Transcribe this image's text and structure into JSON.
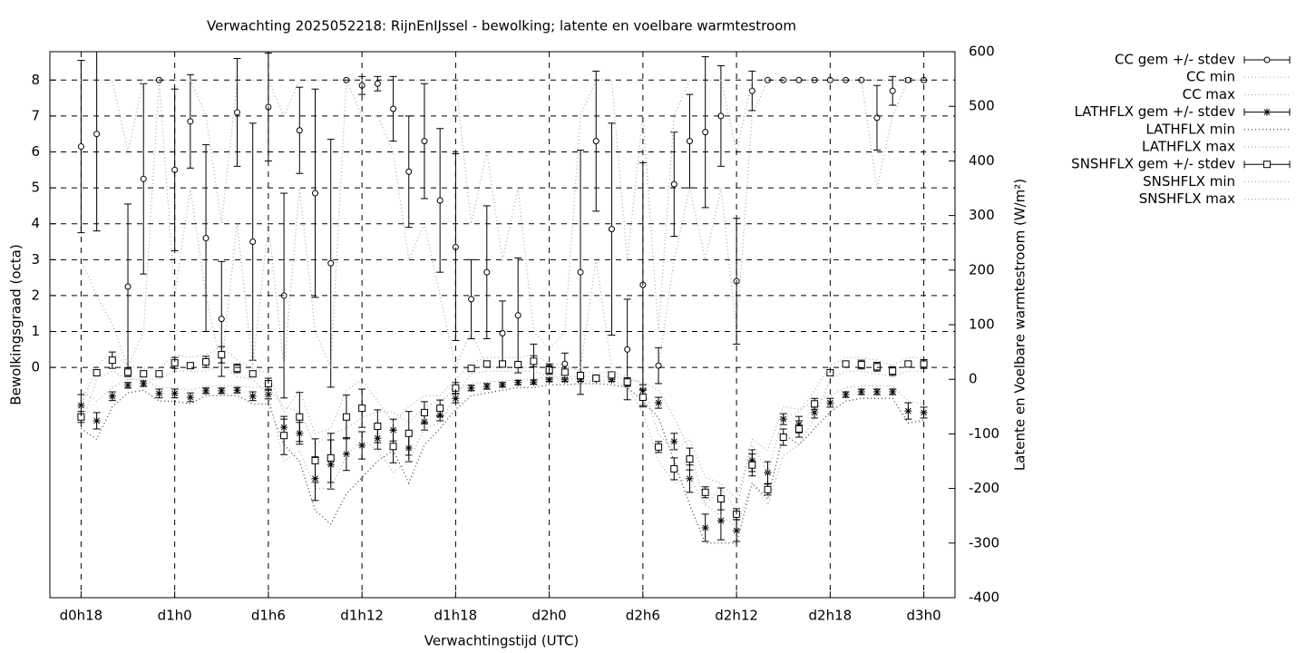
{
  "chart_data": {
    "type": "errorbar",
    "title": "Verwachting 2025052218: RijnEnIJssel - bewolking; latente en voelbare warmtestroom",
    "xlabel": "Verwachtingstijd (UTC)",
    "ylabel": "Bewolkingsgraad (octa)",
    "y2label": "Latente en Voelbare warmtestroom (W/m²)",
    "x": [
      18,
      19,
      20,
      21,
      22,
      23,
      24,
      25,
      26,
      27,
      28,
      29,
      30,
      31,
      32,
      33,
      34,
      35,
      36,
      37,
      38,
      39,
      40,
      41,
      42,
      43,
      44,
      45,
      46,
      47,
      48,
      49,
      50,
      51,
      52,
      53,
      54,
      55,
      56,
      57,
      58,
      59,
      60,
      61,
      62,
      63,
      64,
      65,
      66,
      67,
      68,
      69,
      70,
      71,
      72
    ],
    "xlim": [
      16,
      74
    ],
    "xticks": [
      {
        "value": 18,
        "label": "d0h18"
      },
      {
        "value": 24,
        "label": "d1h0"
      },
      {
        "value": 30,
        "label": "d1h6"
      },
      {
        "value": 36,
        "label": "d1h12"
      },
      {
        "value": 42,
        "label": "d1h18"
      },
      {
        "value": 48,
        "label": "d2h0"
      },
      {
        "value": 54,
        "label": "d2h6"
      },
      {
        "value": 60,
        "label": "d2h12"
      },
      {
        "value": 66,
        "label": "d2h18"
      },
      {
        "value": 72,
        "label": "d3h0"
      }
    ],
    "ylim": [
      -6.41,
      8.79
    ],
    "yticks": [
      0,
      1,
      2,
      3,
      4,
      5,
      6,
      7,
      8
    ],
    "y2lim": [
      -400,
      600
    ],
    "y2ticks": [
      -400,
      -300,
      -200,
      -100,
      0,
      100,
      200,
      300,
      400,
      500,
      600
    ],
    "grid": true,
    "legend": "outside-top-right",
    "series": [
      {
        "name": "CC gem +/- stdev",
        "style": "errorbar",
        "marker": "circle",
        "color": "#000000",
        "values": [
          6.15,
          6.5,
          null,
          2.25,
          5.25,
          8,
          5.5,
          6.85,
          3.6,
          1.35,
          7.1,
          3.5,
          7.25,
          2.0,
          6.6,
          4.85,
          2.9,
          8,
          7.85,
          7.9,
          7.2,
          5.45,
          6.3,
          4.65,
          3.35,
          1.9,
          2.65,
          0.95,
          1.45,
          0.15,
          0,
          0.1,
          2.65,
          6.3,
          3.85,
          0.5,
          2.3,
          0.05,
          5.1,
          6.3,
          6.55,
          7.0,
          2.4,
          7.7,
          8,
          8,
          8,
          8,
          8,
          8,
          8,
          6.95,
          7.7,
          8,
          8
        ],
        "errors": [
          2.4,
          2.7,
          null,
          2.3,
          2.65,
          0,
          2.25,
          1.3,
          2.6,
          1.6,
          1.5,
          3.3,
          1.5,
          2.85,
          1.2,
          2.9,
          3.45,
          0,
          0.25,
          0.2,
          0.9,
          1.55,
          1.6,
          2.0,
          2.6,
          1.1,
          1.85,
          0.9,
          1.6,
          0.5,
          0.1,
          0.3,
          3.4,
          1.95,
          2.95,
          1.4,
          3.4,
          0.5,
          1.45,
          1.3,
          2.1,
          1.4,
          1.75,
          0.55,
          0,
          0,
          0,
          0,
          0,
          0,
          0,
          0.9,
          0.4,
          0.05,
          0
        ]
      },
      {
        "name": "CC min",
        "style": "dotted",
        "color": "#aaaaaa",
        "values": [
          3,
          2,
          1.2,
          0,
          1,
          8,
          2,
          5,
          2,
          0,
          4,
          0,
          4,
          0,
          5,
          1,
          0,
          8,
          7,
          7,
          6,
          3,
          4,
          2,
          0,
          1,
          0,
          0,
          0,
          0,
          0,
          0,
          0,
          3,
          0,
          0,
          0,
          0,
          3,
          5,
          3,
          5,
          1,
          7,
          8,
          8,
          8,
          8,
          8,
          8,
          8,
          5,
          7,
          8,
          8
        ]
      },
      {
        "name": "CC max",
        "style": "dotted",
        "color": "#aaaaaa",
        "values": [
          8,
          8,
          8,
          6,
          8,
          8,
          8,
          8,
          7,
          4,
          8,
          8,
          8,
          7,
          8,
          8,
          8,
          8,
          8,
          8,
          8,
          8,
          8,
          8,
          8,
          4,
          6,
          3,
          5,
          1,
          0.5,
          1,
          7,
          8,
          8,
          3,
          7,
          1,
          7,
          8,
          8,
          8,
          6,
          8,
          8,
          8,
          8,
          8,
          8,
          8,
          8,
          8,
          8,
          8,
          8
        ]
      },
      {
        "name": "LATHFLX gem +/- stdev",
        "style": "errorbar",
        "marker": "star",
        "color": "#000000",
        "axis": "y2",
        "values": [
          -48,
          -76,
          -31,
          -11,
          -8,
          -26,
          -26,
          -33,
          -21,
          -21,
          -20,
          -31,
          -28,
          -88,
          -99,
          -182,
          -156,
          -137,
          -121,
          -108,
          -93,
          -126,
          -78,
          -66,
          -35,
          -16,
          -13,
          -10,
          -6,
          -5,
          -1,
          -1,
          -1,
          0,
          -1,
          -6,
          -20,
          -43,
          -114,
          -182,
          -272,
          -259,
          -277,
          -149,
          -171,
          -73,
          -83,
          -61,
          -43,
          -28,
          -23,
          -23,
          -23,
          -58,
          -61
        ],
        "errors": [
          20,
          15,
          8,
          5,
          5,
          8,
          8,
          8,
          5,
          5,
          5,
          8,
          8,
          15,
          20,
          40,
          45,
          30,
          25,
          20,
          20,
          25,
          15,
          10,
          8,
          5,
          5,
          4,
          4,
          4,
          3,
          3,
          3,
          3,
          3,
          5,
          10,
          10,
          15,
          25,
          25,
          35,
          20,
          20,
          20,
          10,
          15,
          10,
          8,
          5,
          5,
          5,
          5,
          15,
          10
        ]
      },
      {
        "name": "LATHFLX min",
        "style": "dotted",
        "color": "#333333",
        "axis": "y2",
        "values": [
          -90,
          -110,
          -50,
          -25,
          -20,
          -40,
          -40,
          -45,
          -30,
          -30,
          -30,
          -45,
          -45,
          -120,
          -150,
          -240,
          -265,
          -210,
          -180,
          -150,
          -130,
          -190,
          -120,
          -90,
          -55,
          -30,
          -25,
          -20,
          -15,
          -15,
          -10,
          -10,
          -8,
          -8,
          -10,
          -15,
          -40,
          -70,
          -150,
          -230,
          -300,
          -300,
          -300,
          -190,
          -220,
          -100,
          -120,
          -90,
          -60,
          -40,
          -35,
          -35,
          -35,
          -80,
          -75
        ]
      },
      {
        "name": "LATHFLX max",
        "style": "dotted",
        "color": "#aaaaaa",
        "axis": "y2",
        "values": [
          -20,
          -40,
          -15,
          0,
          0,
          -15,
          -15,
          -20,
          -12,
          -12,
          -12,
          -15,
          -15,
          -50,
          -60,
          -120,
          -100,
          -90,
          -70,
          -60,
          -60,
          -80,
          -50,
          -40,
          -20,
          -8,
          -5,
          -3,
          0,
          0,
          5,
          5,
          5,
          5,
          5,
          0,
          -5,
          -20,
          -70,
          -130,
          -230,
          -200,
          -240,
          -110,
          -130,
          -50,
          -55,
          -40,
          -30,
          -15,
          -12,
          -12,
          -12,
          -40,
          -45
        ]
      },
      {
        "name": "SNSHFLX gem +/- stdev",
        "style": "errorbar",
        "marker": "square",
        "color": "#000000",
        "axis": "y2",
        "values": [
          -69,
          12,
          35,
          13,
          10,
          10,
          30,
          25,
          32,
          45,
          20,
          10,
          -8,
          -103,
          -69,
          -149,
          -144,
          -69,
          -53,
          -86,
          -123,
          -99,
          -61,
          -53,
          -16,
          20,
          28,
          28,
          27,
          33,
          17,
          13,
          7,
          2,
          8,
          -5,
          -33,
          -124,
          -164,
          -146,
          -207,
          -219,
          -247,
          -157,
          -202,
          -106,
          -91,
          -45,
          12,
          28,
          27,
          23,
          15,
          28,
          28
        ],
        "errors": [
          10,
          5,
          15,
          8,
          5,
          5,
          10,
          5,
          10,
          15,
          8,
          5,
          10,
          35,
          45,
          40,
          45,
          40,
          35,
          30,
          30,
          40,
          20,
          15,
          10,
          5,
          5,
          5,
          5,
          10,
          8,
          5,
          5,
          5,
          5,
          8,
          15,
          10,
          20,
          20,
          10,
          20,
          10,
          20,
          10,
          15,
          15,
          10,
          5,
          5,
          8,
          8,
          8,
          5,
          8
        ]
      },
      {
        "name": "SNSHFLX min",
        "style": "dotted",
        "color": "#aaaaaa",
        "axis": "y2",
        "values": [
          -85,
          0,
          15,
          0,
          0,
          0,
          15,
          15,
          15,
          25,
          5,
          0,
          -30,
          -150,
          -130,
          -200,
          -200,
          -140,
          -110,
          -130,
          -170,
          -150,
          -90,
          -80,
          -30,
          10,
          15,
          15,
          15,
          15,
          5,
          0,
          0,
          -5,
          0,
          -15,
          -60,
          -150,
          -190,
          -180,
          -230,
          -250,
          -270,
          -190,
          -230,
          -140,
          -120,
          -70,
          0,
          15,
          15,
          10,
          5,
          15,
          15
        ]
      },
      {
        "name": "SNSHFLX max",
        "style": "dotted",
        "color": "#aaaaaa",
        "axis": "y2",
        "values": [
          -50,
          25,
          50,
          25,
          20,
          20,
          45,
          40,
          45,
          60,
          35,
          20,
          10,
          -60,
          -20,
          -100,
          -90,
          -20,
          0,
          -40,
          -80,
          -50,
          -30,
          -30,
          0,
          30,
          40,
          40,
          40,
          45,
          30,
          25,
          15,
          10,
          15,
          5,
          -10,
          -100,
          -130,
          -110,
          -180,
          -190,
          -220,
          -120,
          -170,
          -70,
          -60,
          -20,
          25,
          40,
          40,
          35,
          25,
          40,
          40
        ]
      }
    ]
  }
}
